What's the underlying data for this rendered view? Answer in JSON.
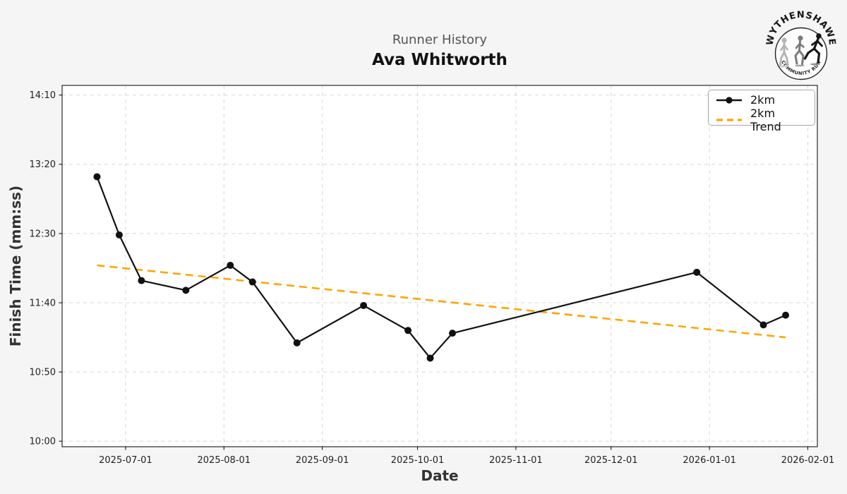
{
  "chart_data": {
    "type": "line",
    "suptitle": "Runner History",
    "title": "Ava Whitworth",
    "xlabel": "Date",
    "ylabel": "Finish Time (mm:ss)",
    "x_ticks": [
      "2025-07-01",
      "2025-08-01",
      "2025-09-01",
      "2025-10-01",
      "2025-11-01",
      "2025-12-01",
      "2026-01-01",
      "2026-02-01"
    ],
    "y_ticks": [
      "14:10",
      "13:20",
      "12:30",
      "11:40",
      "10:50",
      "10:00"
    ],
    "xlim": [
      "2025-06-11",
      "2026-02-04"
    ],
    "ylim": [
      "09:56",
      "14:17"
    ],
    "grid": true,
    "legend_position": "upper-right",
    "series": [
      {
        "name": "2km",
        "style": "solid-with-markers",
        "color": "#111111",
        "points": [
          {
            "date": "2025-06-22",
            "time": "13:11"
          },
          {
            "date": "2025-06-29",
            "time": "12:29"
          },
          {
            "date": "2025-07-06",
            "time": "11:56"
          },
          {
            "date": "2025-07-20",
            "time": "11:49"
          },
          {
            "date": "2025-08-03",
            "time": "12:07"
          },
          {
            "date": "2025-08-10",
            "time": "11:55"
          },
          {
            "date": "2025-08-24",
            "time": "11:11"
          },
          {
            "date": "2025-09-14",
            "time": "11:38"
          },
          {
            "date": "2025-09-28",
            "time": "11:20"
          },
          {
            "date": "2025-10-05",
            "time": "11:00"
          },
          {
            "date": "2025-10-12",
            "time": "11:18"
          },
          {
            "date": "2025-12-28",
            "time": "12:02"
          },
          {
            "date": "2026-01-18",
            "time": "11:24"
          },
          {
            "date": "2026-01-25",
            "time": "11:31"
          }
        ]
      },
      {
        "name": "2km Trend",
        "style": "dashed",
        "color": "#FFA500",
        "points": [
          {
            "date": "2025-06-22",
            "time": "12:07"
          },
          {
            "date": "2026-01-25",
            "time": "11:15"
          }
        ]
      }
    ]
  },
  "logo": {
    "arc_top": "WYTHENSHAWE",
    "arc_bottom": "COMMUNITY RUN"
  },
  "colors": {
    "figure_bg": "#f5f5f5",
    "plot_bg": "#ffffff",
    "grid": "#d8d8d8",
    "spine": "#000000",
    "tick_label": "#222222",
    "suptitle": "#555555",
    "title": "#111111",
    "trend": "#FFA500",
    "series": "#111111"
  }
}
